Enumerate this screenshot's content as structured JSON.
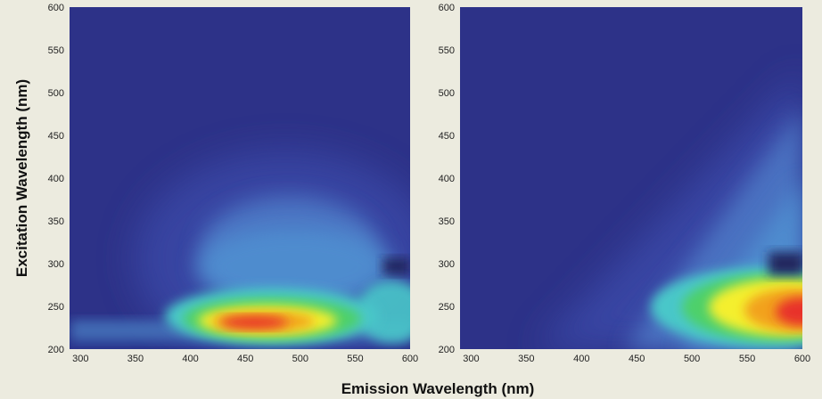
{
  "figure": {
    "ylabel": "Excitation Wavelength (nm)",
    "xlabel": "Emission Wavelength (nm)"
  },
  "colors": {
    "background": "#ecebdf",
    "low": "#2d3288",
    "mid_low": "#3a52b8",
    "mid": "#4f8fd0",
    "cyan": "#48c7c9",
    "green": "#4ed06a",
    "yellow": "#f4ef2e",
    "orange": "#f2a21e",
    "high": "#e8302a"
  },
  "chart_data": [
    {
      "type": "heatmap",
      "title": "",
      "xlabel": "Emission Wavelength (nm)",
      "ylabel": "Excitation Wavelength (nm)",
      "xlim": [
        290,
        600
      ],
      "ylim": [
        200,
        600
      ],
      "xticks": [
        "300",
        "350",
        "400",
        "450",
        "500",
        "550",
        "600"
      ],
      "yticks": [
        "200",
        "250",
        "300",
        "350",
        "400",
        "450",
        "500",
        "550",
        "600"
      ],
      "peaks": [
        {
          "emission": 460,
          "excitation": 232,
          "intensity": 1.0,
          "note": "primary peak (red)"
        },
        {
          "emission": 480,
          "excitation": 340,
          "intensity": 0.3,
          "note": "secondary shoulder (light blue)"
        }
      ]
    },
    {
      "type": "heatmap",
      "title": "",
      "xlabel": "Emission Wavelength (nm)",
      "ylabel": "",
      "xlim": [
        290,
        600
      ],
      "ylim": [
        200,
        600
      ],
      "xticks": [
        "300",
        "350",
        "400",
        "450",
        "500",
        "550",
        "600"
      ],
      "yticks": [
        "200",
        "250",
        "300",
        "350",
        "400",
        "450",
        "500",
        "550",
        "600"
      ],
      "peaks": [
        {
          "emission": 590,
          "excitation": 235,
          "intensity": 1.0,
          "note": "primary peak (orange-red)"
        },
        {
          "emission": 580,
          "excitation": 370,
          "intensity": 0.35,
          "note": "diagonal ridge (light blue)"
        }
      ]
    }
  ]
}
